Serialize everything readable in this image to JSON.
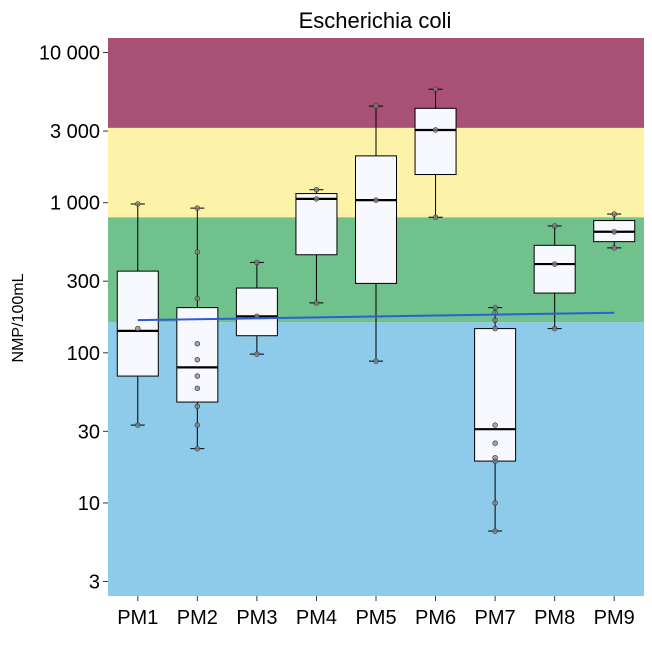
{
  "chart_data": {
    "type": "boxplot",
    "title": "Escherichia coli",
    "xlabel": "",
    "ylabel": "NMP/100mL",
    "yscale": "log10",
    "ylim": [
      2.4,
      12500
    ],
    "y_ticks": [
      {
        "value": 3,
        "label": "3"
      },
      {
        "value": 10,
        "label": "10"
      },
      {
        "value": 30,
        "label": "30"
      },
      {
        "value": 100,
        "label": "100"
      },
      {
        "value": 300,
        "label": "300"
      },
      {
        "value": 1000,
        "label": "1 000"
      },
      {
        "value": 3000,
        "label": "3 000"
      },
      {
        "value": 10000,
        "label": "10 000"
      }
    ],
    "bands": [
      {
        "name": "blue",
        "from": 2.4,
        "to": 160,
        "color": "#8ecae9"
      },
      {
        "name": "green",
        "from": 160,
        "to": 800,
        "color": "#71c18c"
      },
      {
        "name": "yellow",
        "from": 800,
        "to": 3150,
        "color": "#fcf3a8"
      },
      {
        "name": "purple",
        "from": 3150,
        "to": 12500,
        "color": "#a95075"
      }
    ],
    "categories": [
      "PM1",
      "PM2",
      "PM3",
      "PM4",
      "PM5",
      "PM6",
      "PM7",
      "PM8",
      "PM9"
    ],
    "boxes": [
      {
        "label": "PM1",
        "whisker_low": 33,
        "q1": 70,
        "median": 140,
        "q3": 350,
        "whisker_high": 980,
        "points": [
          33,
          145,
          980
        ]
      },
      {
        "label": "PM2",
        "whisker_low": 23,
        "q1": 47,
        "median": 80,
        "q3": 200,
        "whisker_high": 920,
        "points": [
          23,
          33,
          44,
          58,
          70,
          90,
          115,
          230,
          470,
          920
        ]
      },
      {
        "label": "PM3",
        "whisker_low": 98,
        "q1": 130,
        "median": 175,
        "q3": 270,
        "whisker_high": 400,
        "points": [
          98,
          175,
          400
        ]
      },
      {
        "label": "PM4",
        "whisker_low": 215,
        "q1": 450,
        "median": 1060,
        "q3": 1150,
        "whisker_high": 1220,
        "points": [
          215,
          1060,
          1220
        ]
      },
      {
        "label": "PM5",
        "whisker_low": 88,
        "q1": 290,
        "median": 1040,
        "q3": 2050,
        "whisker_high": 4400,
        "points": [
          88,
          1040,
          4400
        ]
      },
      {
        "label": "PM6",
        "whisker_low": 800,
        "q1": 1540,
        "median": 3050,
        "q3": 4250,
        "whisker_high": 5700,
        "points": [
          800,
          3050,
          5700
        ]
      },
      {
        "label": "PM7",
        "whisker_low": 6.5,
        "q1": 19,
        "median": 31,
        "q3": 145,
        "whisker_high": 200,
        "points": [
          6.5,
          10,
          19,
          20,
          25,
          33,
          145,
          165,
          185,
          200
        ]
      },
      {
        "label": "PM8",
        "whisker_low": 145,
        "q1": 250,
        "median": 390,
        "q3": 520,
        "whisker_high": 700,
        "points": [
          145,
          390,
          700
        ]
      },
      {
        "label": "PM9",
        "whisker_low": 500,
        "q1": 550,
        "median": 640,
        "q3": 760,
        "whisker_high": 840,
        "points": [
          500,
          640,
          840
        ]
      }
    ],
    "trend_line": {
      "from_category": "PM1",
      "to_category": "PM9",
      "y_start": 165,
      "y_end": 185,
      "color": "#2a5fd6"
    },
    "grid": false,
    "legend": "none"
  }
}
